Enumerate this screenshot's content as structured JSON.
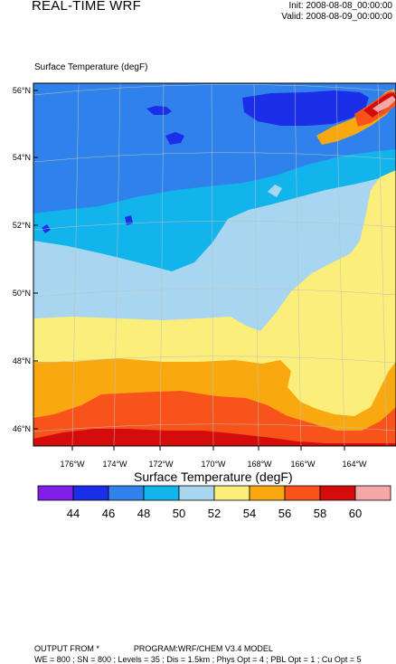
{
  "header": {
    "title": "REAL-TIME WRF",
    "init": "Init: 2008-08-08_00:00:00",
    "valid": "Valid: 2008-08-09_00:00:00"
  },
  "field_label": "Surface Temperature   (degF)",
  "map": {
    "lat_labels": [
      "56°N",
      "54°N",
      "52°N",
      "50°N",
      "48°N",
      "46°N"
    ],
    "lon_labels": [
      "176°W",
      "174°W",
      "172°W",
      "170°W",
      "168°W",
      "166°W",
      "164°W"
    ],
    "colors": {
      "t42_44": "#7f1fe8",
      "t44_46": "#1b2ee8",
      "t46_48": "#2f82ec",
      "t48_50": "#12b4ec",
      "t50_52": "#a8d6f0",
      "t52_54": "#fbee7a",
      "t54_56": "#f9a90f",
      "t56_58": "#f8531b",
      "t58_60": "#d40c0c",
      "t60_62": "#f5a7a7"
    }
  },
  "legend": {
    "title": "Surface Temperature  (degF)",
    "labels": [
      "44",
      "46",
      "48",
      "50",
      "52",
      "54",
      "56",
      "58",
      "60"
    ],
    "colors": [
      "#7f1fe8",
      "#1b2ee8",
      "#2f82ec",
      "#12b4ec",
      "#a8d6f0",
      "#fbee7a",
      "#f9a90f",
      "#f8531b",
      "#d40c0c",
      "#f5a7a7"
    ]
  },
  "footer": {
    "line1_left": "OUTPUT FROM *",
    "line1_right": "PROGRAM:WRF/CHEM V3.4 MODEL",
    "line2": "WE = 800 ; SN = 800 ; Levels = 35 ; Dis = 1.5km ; Phys Opt = 4 ; PBL Opt = 1 ; Cu Opt = 5"
  }
}
